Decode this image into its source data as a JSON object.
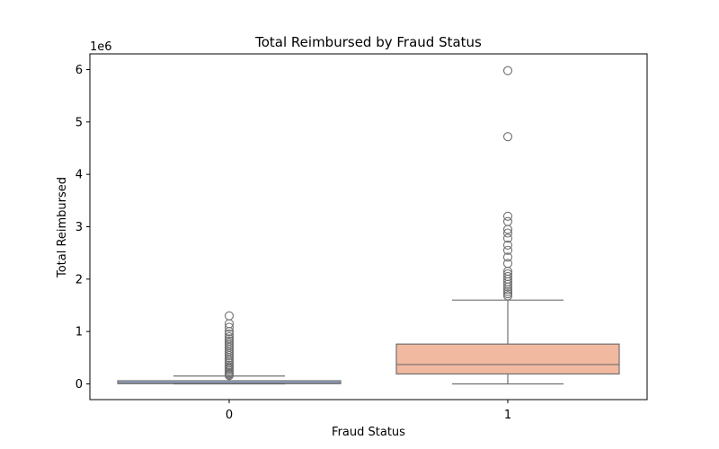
{
  "chart_data": {
    "type": "box",
    "title": "Total Reimbursed by Fraud Status",
    "xlabel": "Fraud Status",
    "ylabel": "Total Reimbursed",
    "y_offset_label": "1e6",
    "y_scale_factor": 1000000,
    "ylim": [
      -300000,
      6300000
    ],
    "yticks": [
      0,
      1,
      2,
      3,
      4,
      5,
      6
    ],
    "grid": false,
    "categories": [
      "0",
      "1"
    ],
    "boxes": [
      {
        "category": "0",
        "color": "#9fb8e6",
        "whisker_low": 0,
        "q1": 5000,
        "median": 20000,
        "q3": 60000,
        "whisker_high": 150000,
        "outliers": [
          160000,
          180000,
          200000,
          220000,
          250000,
          280000,
          300000,
          330000,
          360000,
          400000,
          430000,
          460000,
          500000,
          540000,
          580000,
          620000,
          660000,
          700000,
          740000,
          780000,
          820000,
          860000,
          900000,
          950000,
          1000000,
          1080000,
          1150000,
          1300000
        ]
      },
      {
        "category": "1",
        "color": "#f2b9a1",
        "whisker_low": 0,
        "q1": 190000,
        "median": 370000,
        "q3": 760000,
        "whisker_high": 1600000,
        "outliers": [
          1680000,
          1720000,
          1760000,
          1800000,
          1850000,
          1900000,
          1950000,
          2000000,
          2050000,
          2100000,
          2150000,
          2300000,
          2420000,
          2550000,
          2650000,
          2780000,
          2880000,
          2950000,
          3100000,
          3200000,
          4720000,
          5980000
        ]
      }
    ]
  }
}
